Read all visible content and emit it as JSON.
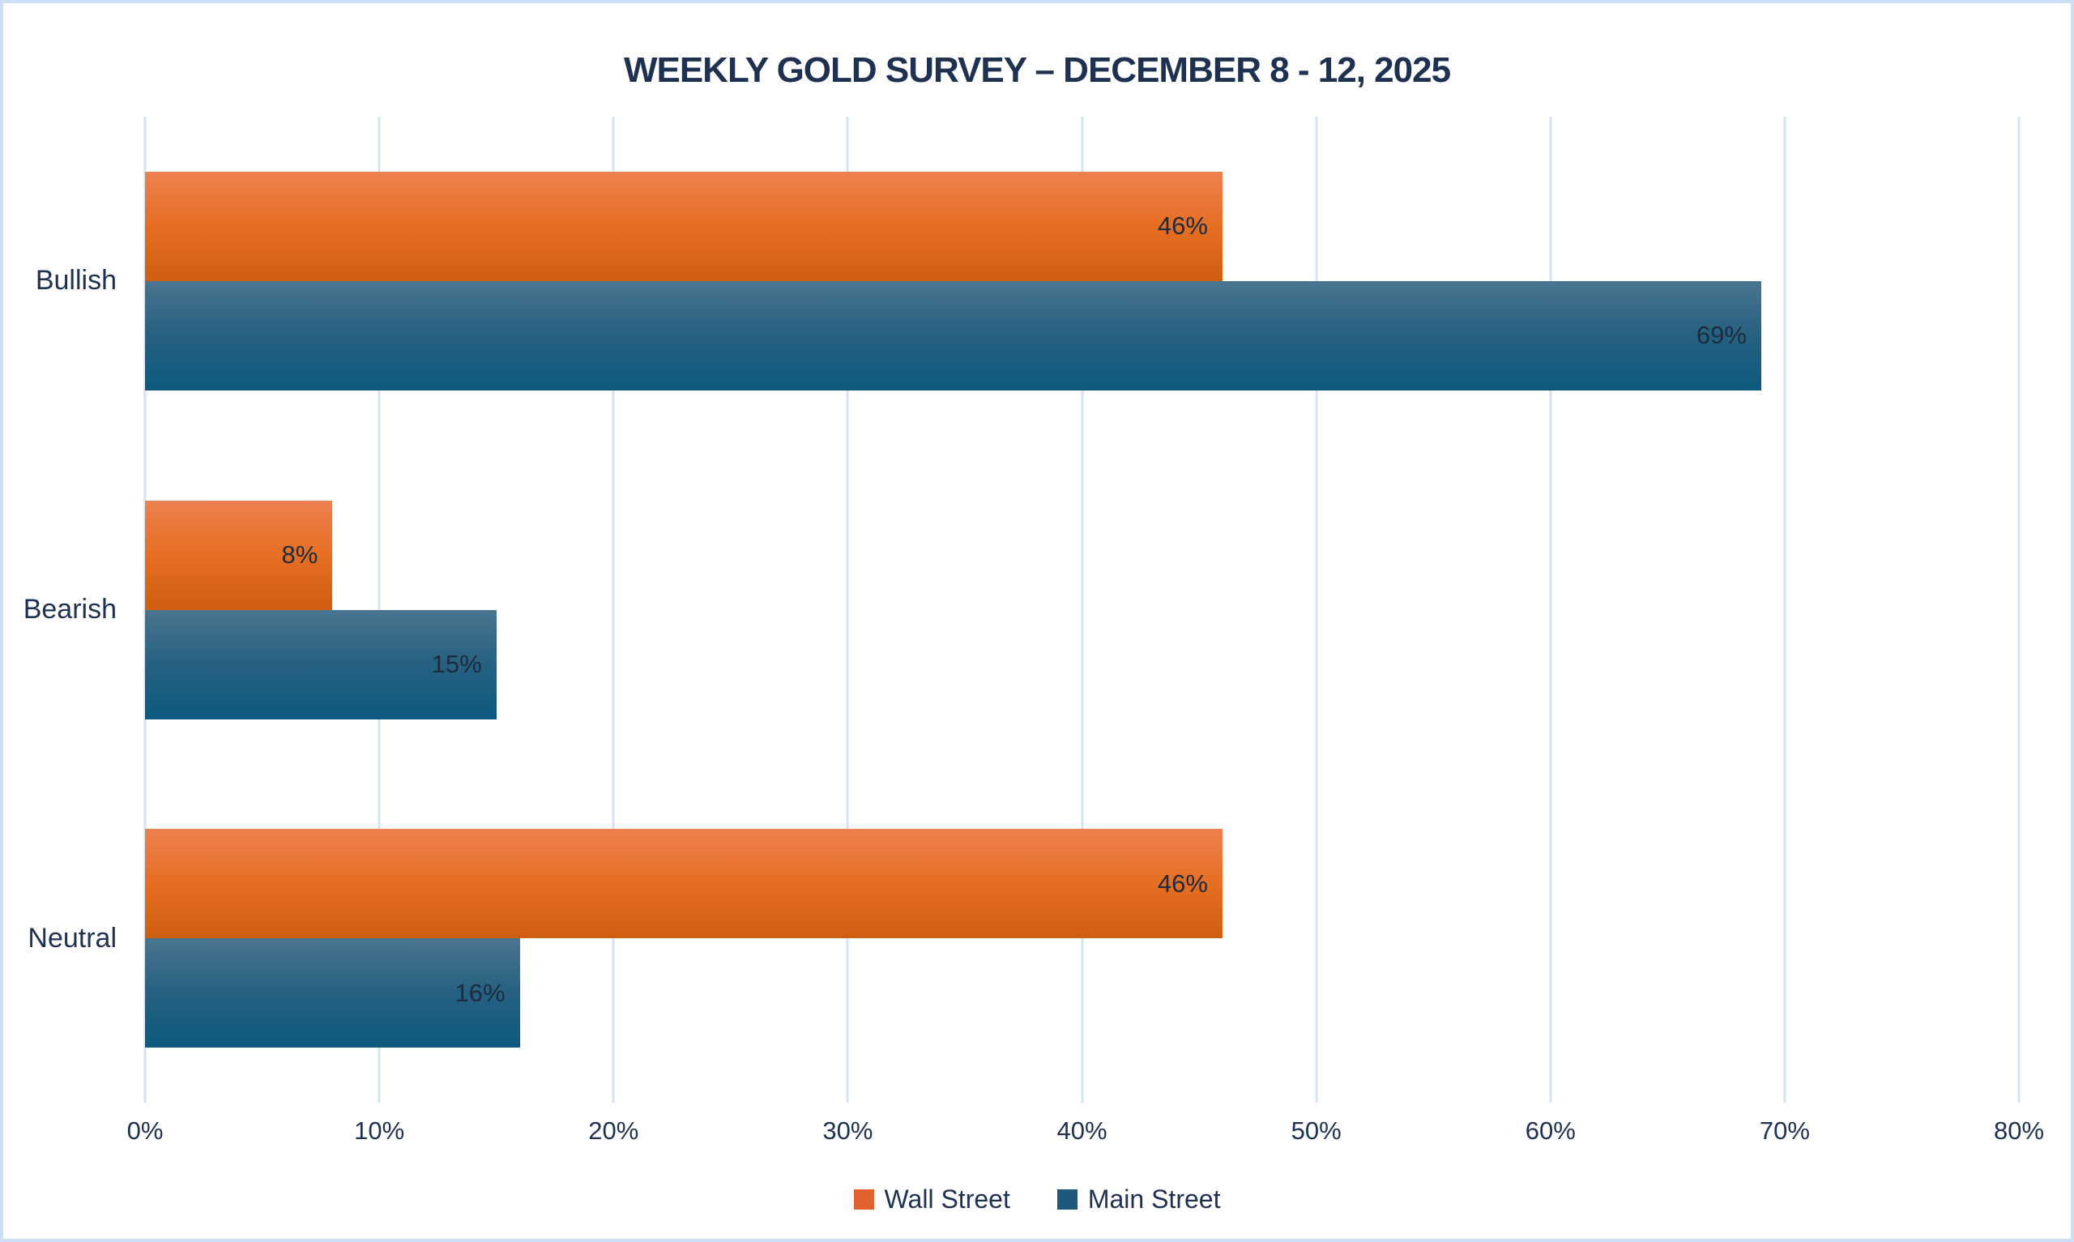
{
  "chart_data": {
    "type": "bar",
    "orientation": "horizontal",
    "title": "WEEKLY GOLD SURVEY – DECEMBER 8 - 12, 2025",
    "categories": [
      "Bullish",
      "Bearish",
      "Neutral"
    ],
    "series": [
      {
        "name": "Wall Street",
        "values": [
          46,
          8,
          46
        ],
        "value_labels": [
          "46%",
          "8%",
          "46%"
        ],
        "gradient_top": "#ED8150",
        "gradient_mid": "#E66E22",
        "gradient_bottom": "#CF5E10",
        "legend_color": "#E2612E"
      },
      {
        "name": "Main Street",
        "values": [
          69,
          15,
          16
        ],
        "value_labels": [
          "69%",
          "15%",
          "16%"
        ],
        "gradient_top": "#4A7590",
        "gradient_mid": "#266080",
        "gradient_bottom": "#0C5A7E",
        "legend_color": "#1E587A"
      }
    ],
    "x_ticks": [
      "0%",
      "10%",
      "20%",
      "30%",
      "40%",
      "50%",
      "60%",
      "70%",
      "80%"
    ],
    "xlim": [
      0,
      80
    ],
    "grid": true,
    "legend_position": "bottom"
  },
  "colors": {
    "text": "#1E3150",
    "value_label_text": "#1C2B3E",
    "gridline": "#D5E3F5",
    "frame_border": "#CCDFF6",
    "background": "#FFFFFF"
  }
}
